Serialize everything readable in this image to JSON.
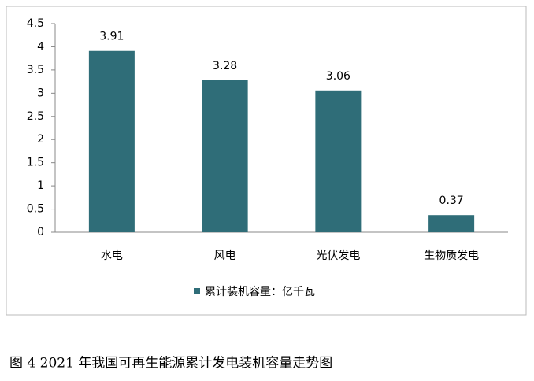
{
  "chart_data": {
    "type": "bar",
    "categories": [
      "水电",
      "风电",
      "光伏发电",
      "生物质发电"
    ],
    "series": [
      {
        "name": "累计装机容量：亿千瓦",
        "color": "#2f6d78",
        "values": [
          3.91,
          3.28,
          3.06,
          0.37
        ]
      }
    ],
    "ylim": [
      0,
      4.5
    ],
    "yticks": [
      0,
      0.5,
      1,
      1.5,
      2,
      2.5,
      3,
      3.5,
      4,
      4.5
    ],
    "grid": false,
    "legend": "bottom",
    "caption": "图 4 2021 年我国可再生能源累计发电装机容量走势图"
  }
}
